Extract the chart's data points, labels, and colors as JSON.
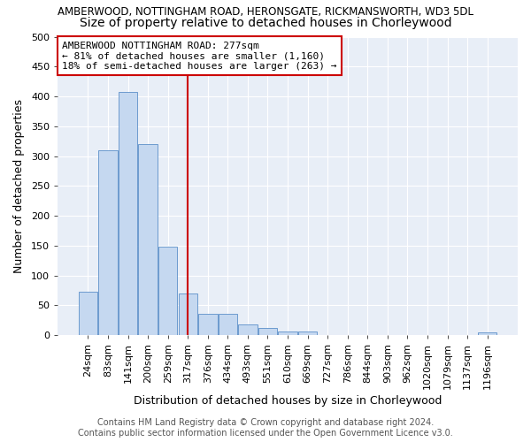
{
  "title1": "AMBERWOOD, NOTTINGHAM ROAD, HERONSGATE, RICKMANSWORTH, WD3 5DL",
  "title2": "Size of property relative to detached houses in Chorleywood",
  "xlabel": "Distribution of detached houses by size in Chorleywood",
  "ylabel": "Number of detached properties",
  "footer1": "Contains HM Land Registry data © Crown copyright and database right 2024.",
  "footer2": "Contains public sector information licensed under the Open Government Licence v3.0.",
  "bins": [
    "24sqm",
    "83sqm",
    "141sqm",
    "200sqm",
    "259sqm",
    "317sqm",
    "376sqm",
    "434sqm",
    "493sqm",
    "551sqm",
    "610sqm",
    "669sqm",
    "727sqm",
    "786sqm",
    "844sqm",
    "903sqm",
    "962sqm",
    "1020sqm",
    "1079sqm",
    "1137sqm",
    "1196sqm"
  ],
  "values": [
    73,
    310,
    408,
    320,
    148,
    70,
    36,
    36,
    18,
    12,
    6,
    6,
    0,
    0,
    0,
    0,
    0,
    0,
    0,
    0,
    4
  ],
  "bar_color": "#c5d8f0",
  "bar_edge_color": "#5b8fc9",
  "vline_x": 5.0,
  "vline_color": "#cc0000",
  "annotation_text": "AMBERWOOD NOTTINGHAM ROAD: 277sqm\n← 81% of detached houses are smaller (1,160)\n18% of semi-detached houses are larger (263) →",
  "annotation_box_color": "white",
  "annotation_box_edge": "#cc0000",
  "ylim": [
    0,
    500
  ],
  "yticks": [
    0,
    50,
    100,
    150,
    200,
    250,
    300,
    350,
    400,
    450,
    500
  ],
  "bg_color": "#e8eef7",
  "grid_color": "white",
  "title1_fontsize": 8.5,
  "title2_fontsize": 10,
  "ylabel_fontsize": 9,
  "xlabel_fontsize": 9,
  "tick_fontsize": 8,
  "annotation_fontsize": 8,
  "footer_fontsize": 7
}
